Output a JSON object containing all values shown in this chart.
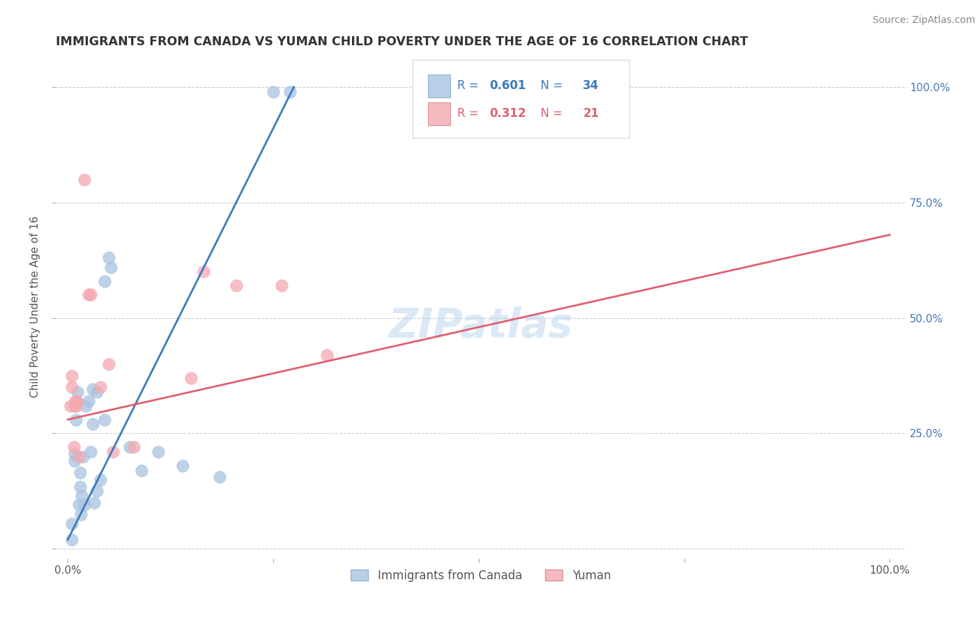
{
  "title": "IMMIGRANTS FROM CANADA VS YUMAN CHILD POVERTY UNDER THE AGE OF 16 CORRELATION CHART",
  "source": "Source: ZipAtlas.com",
  "ylabel": "Child Poverty Under the Age of 16",
  "legend_labels": [
    "Immigrants from Canada",
    "Yuman"
  ],
  "blue_r": "0.601",
  "blue_n": "34",
  "pink_r": "0.312",
  "pink_n": "21",
  "blue_color": "#a8c4e0",
  "pink_color": "#f4a8b0",
  "line_blue": "#3a7abf",
  "line_pink": "#e06070",
  "watermark": "ZIPatlas",
  "blue_points": [
    [
      0.5,
      2.0
    ],
    [
      0.5,
      5.5
    ],
    [
      0.8,
      19.0
    ],
    [
      0.8,
      20.5
    ],
    [
      1.0,
      28.0
    ],
    [
      1.2,
      31.5
    ],
    [
      1.2,
      34.0
    ],
    [
      1.3,
      9.5
    ],
    [
      1.5,
      13.5
    ],
    [
      1.5,
      16.5
    ],
    [
      1.6,
      7.5
    ],
    [
      1.7,
      11.5
    ],
    [
      1.8,
      20.0
    ],
    [
      2.0,
      9.5
    ],
    [
      2.2,
      31.0
    ],
    [
      2.5,
      32.0
    ],
    [
      2.8,
      21.0
    ],
    [
      3.0,
      27.0
    ],
    [
      3.0,
      34.5
    ],
    [
      3.2,
      10.0
    ],
    [
      3.5,
      12.5
    ],
    [
      3.5,
      34.0
    ],
    [
      4.0,
      15.0
    ],
    [
      4.5,
      28.0
    ],
    [
      4.5,
      58.0
    ],
    [
      5.0,
      63.0
    ],
    [
      5.2,
      61.0
    ],
    [
      7.5,
      22.0
    ],
    [
      9.0,
      17.0
    ],
    [
      11.0,
      21.0
    ],
    [
      14.0,
      18.0
    ],
    [
      18.5,
      15.5
    ],
    [
      25.0,
      99.0
    ],
    [
      27.0,
      99.0
    ]
  ],
  "pink_points": [
    [
      0.3,
      31.0
    ],
    [
      0.5,
      35.0
    ],
    [
      0.5,
      37.5
    ],
    [
      0.7,
      22.0
    ],
    [
      0.8,
      31.0
    ],
    [
      0.9,
      32.0
    ],
    [
      1.0,
      31.0
    ],
    [
      1.1,
      32.0
    ],
    [
      1.3,
      20.0
    ],
    [
      2.0,
      80.0
    ],
    [
      2.5,
      55.0
    ],
    [
      2.8,
      55.0
    ],
    [
      4.0,
      35.0
    ],
    [
      5.0,
      40.0
    ],
    [
      5.5,
      21.0
    ],
    [
      8.0,
      22.0
    ],
    [
      15.0,
      37.0
    ],
    [
      16.5,
      60.0
    ],
    [
      20.5,
      57.0
    ],
    [
      26.0,
      57.0
    ],
    [
      31.5,
      42.0
    ]
  ],
  "blue_line_x": [
    0.0,
    27.5
  ],
  "blue_line_y": [
    2.0,
    100.0
  ],
  "pink_line_x": [
    0.0,
    100.0
  ],
  "pink_line_y": [
    28.0,
    68.0
  ],
  "xlim": [
    0.0,
    100.0
  ],
  "ylim": [
    0.0,
    105.0
  ],
  "xtick_positions": [
    0.0,
    25.0,
    50.0,
    75.0,
    100.0
  ],
  "xticklabels": [
    "0.0%",
    "",
    "",
    "",
    "100.0%"
  ],
  "ytick_positions": [
    0.0,
    25.0,
    50.0,
    75.0,
    100.0
  ],
  "ytick_labels_right": [
    "",
    "25.0%",
    "50.0%",
    "75.0%",
    "100.0%"
  ],
  "grid_color": "#cccccc",
  "background": "#ffffff",
  "title_color": "#333333",
  "right_tick_color": "#4477bb"
}
